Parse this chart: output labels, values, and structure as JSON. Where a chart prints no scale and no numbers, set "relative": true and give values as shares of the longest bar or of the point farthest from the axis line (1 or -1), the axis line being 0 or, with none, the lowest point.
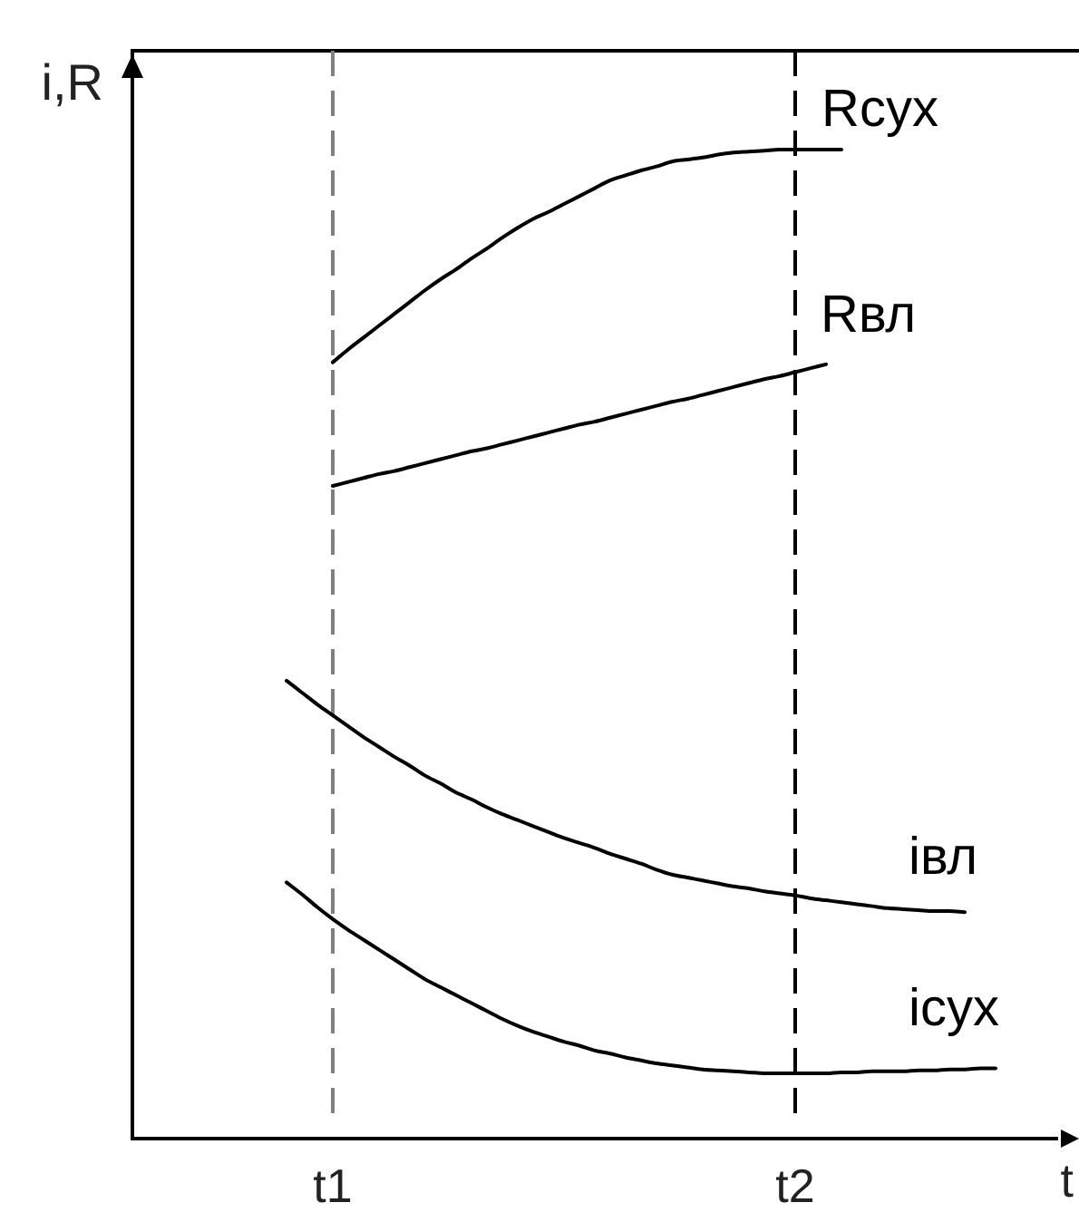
{
  "chart_data": {
    "type": "line",
    "relative": true,
    "xlabel": "t",
    "ylabel": "i,R",
    "categories": [
      null,
      null,
      null,
      null,
      null,
      null,
      null,
      null,
      null,
      null,
      null,
      null,
      null,
      "t1",
      null,
      null,
      null,
      null,
      null,
      null,
      null,
      null,
      null,
      null,
      null,
      null,
      null,
      null,
      null,
      null,
      null,
      null,
      null,
      null,
      null,
      null,
      null,
      null,
      null,
      null,
      null,
      null,
      null,
      "t2",
      null,
      null,
      null,
      null,
      null,
      null,
      null,
      null,
      null,
      null,
      null,
      null,
      null,
      null,
      null,
      null,
      null
    ],
    "series": [
      {
        "name": "Rсух",
        "color": "#000000",
        "values": [
          null,
          null,
          null,
          null,
          null,
          null,
          null,
          null,
          null,
          null,
          null,
          null,
          null,
          0.785,
          0.798,
          0.81,
          0.822,
          0.834,
          0.846,
          0.858,
          0.869,
          0.879,
          0.89,
          0.9,
          0.911,
          0.921,
          0.93,
          0.937,
          0.945,
          0.953,
          0.961,
          0.969,
          0.974,
          0.979,
          0.983,
          0.988,
          0.99,
          0.992,
          0.995,
          0.997,
          0.998,
          0.999,
          1,
          1,
          1,
          1,
          1,
          null,
          null,
          null,
          null,
          null,
          null,
          null,
          null,
          null,
          null,
          null,
          null,
          null,
          null
        ]
      },
      {
        "name": "Rвл",
        "color": "#000000",
        "values": [
          null,
          null,
          null,
          null,
          null,
          null,
          null,
          null,
          null,
          null,
          null,
          null,
          null,
          0.66,
          0.664,
          0.668,
          0.672,
          0.675,
          0.679,
          0.683,
          0.687,
          0.691,
          0.695,
          0.698,
          0.702,
          0.706,
          0.71,
          0.714,
          0.718,
          0.722,
          0.725,
          0.729,
          0.733,
          0.737,
          0.741,
          0.745,
          0.748,
          0.752,
          0.756,
          0.76,
          0.764,
          0.768,
          0.771,
          0.775,
          0.779,
          0.783,
          null,
          null,
          null,
          null,
          null,
          null,
          null,
          null,
          null,
          null,
          null,
          null,
          null,
          null,
          null
        ]
      },
      {
        "name": "iвл",
        "color": "#000000",
        "values": [
          null,
          null,
          null,
          null,
          null,
          null,
          null,
          null,
          null,
          null,
          0.463,
          0.451,
          0.439,
          0.428,
          0.417,
          0.406,
          0.396,
          0.386,
          0.377,
          0.367,
          0.359,
          0.35,
          0.343,
          0.335,
          0.328,
          0.322,
          0.316,
          0.31,
          0.304,
          0.299,
          0.294,
          0.288,
          0.283,
          0.278,
          0.272,
          0.267,
          0.264,
          0.261,
          0.258,
          0.255,
          0.253,
          0.25,
          0.248,
          0.246,
          0.243,
          0.241,
          0.239,
          0.237,
          0.235,
          0.233,
          0.232,
          0.231,
          0.23,
          0.23,
          0.229,
          null,
          null,
          null,
          null,
          null,
          null
        ]
      },
      {
        "name": "iсух",
        "color": "#000000",
        "values": [
          null,
          null,
          null,
          null,
          null,
          null,
          null,
          null,
          null,
          null,
          0.259,
          0.247,
          0.234,
          0.222,
          0.211,
          0.201,
          0.191,
          0.181,
          0.171,
          0.161,
          0.153,
          0.145,
          0.137,
          0.129,
          0.121,
          0.114,
          0.108,
          0.103,
          0.098,
          0.094,
          0.089,
          0.086,
          0.082,
          0.079,
          0.076,
          0.074,
          0.072,
          0.07,
          0.069,
          0.068,
          0.067,
          0.066,
          0.066,
          0.066,
          0.066,
          0.066,
          0.067,
          0.067,
          0.068,
          0.068,
          0.068,
          0.069,
          0.069,
          0.07,
          0.07,
          0.071,
          0.071,
          null,
          null,
          null,
          null
        ]
      }
    ],
    "ref_lines": [
      {
        "axis": "x",
        "value": "t1",
        "color": "#808080",
        "line_style": "dashed"
      },
      {
        "axis": "x",
        "value": "t2",
        "color": "#000000",
        "line_style": "dashed"
      }
    ],
    "grid": false,
    "legend": false,
    "marker": "none",
    "tick_labels": "x"
  }
}
